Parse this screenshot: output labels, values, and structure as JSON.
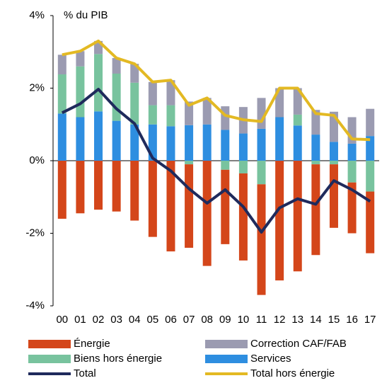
{
  "chart_data": {
    "type": "bar",
    "annotation": "% du PIB",
    "categories": [
      "00",
      "01",
      "02",
      "03",
      "04",
      "05",
      "06",
      "07",
      "08",
      "09",
      "10",
      "11",
      "12",
      "13",
      "14",
      "15",
      "16",
      "17"
    ],
    "series": [
      {
        "name": "Énergie",
        "type": "bar",
        "color": "#d4461a",
        "values": [
          -1.6,
          -1.45,
          -1.35,
          -1.4,
          -1.65,
          -2.1,
          -2.5,
          -2.3,
          -2.9,
          -2.05,
          -2.4,
          -3.05,
          -3.3,
          -3.05,
          -2.5,
          -1.75,
          -1.4,
          -1.7
        ]
      },
      {
        "name": "Correction CAF/FAB",
        "type": "bar",
        "color": "#9b9bb1",
        "values": [
          0.54,
          0.42,
          0.36,
          0.43,
          0.52,
          0.64,
          0.69,
          0.65,
          0.73,
          0.65,
          0.73,
          0.85,
          0.8,
          0.73,
          0.68,
          0.83,
          0.73,
          0.75
        ]
      },
      {
        "name": "Biens hors énergie",
        "type": "bar",
        "color": "#78c39e",
        "values": [
          1.08,
          1.4,
          1.58,
          1.3,
          1.15,
          0.53,
          0.58,
          -0.1,
          0,
          -0.25,
          -0.35,
          -0.65,
          0,
          0.3,
          -0.1,
          -0.1,
          -0.6,
          -0.85
        ]
      },
      {
        "name": "Services",
        "type": "bar",
        "color": "#2e8ee0",
        "values": [
          1.3,
          1.2,
          1.36,
          1.1,
          1.0,
          1.0,
          0.95,
          0.98,
          1.0,
          0.85,
          0.75,
          0.88,
          1.2,
          0.97,
          0.72,
          0.52,
          0.47,
          0.68
        ]
      },
      {
        "name": "Total",
        "type": "line",
        "color": "#1f2a5c",
        "values": [
          1.32,
          1.57,
          1.97,
          1.43,
          1.02,
          0.07,
          -0.28,
          -0.77,
          -1.17,
          -0.8,
          -1.27,
          -1.97,
          -1.3,
          -1.05,
          -1.2,
          -0.55,
          -0.8,
          -1.12
        ]
      },
      {
        "name": "Total hors énergie",
        "type": "line",
        "color": "#e3b923",
        "values": [
          2.92,
          3.02,
          3.3,
          2.83,
          2.67,
          2.17,
          2.22,
          1.53,
          1.73,
          1.25,
          1.13,
          1.08,
          2.0,
          2.0,
          1.3,
          1.25,
          0.6,
          0.58
        ]
      }
    ],
    "ylim": [
      -4,
      4
    ],
    "yticks": [
      {
        "value": -4,
        "label": "-4%"
      },
      {
        "value": -2,
        "label": "-2%"
      },
      {
        "value": 0,
        "label": "0%"
      },
      {
        "value": 2,
        "label": "2%"
      },
      {
        "value": 4,
        "label": "4%"
      }
    ]
  }
}
